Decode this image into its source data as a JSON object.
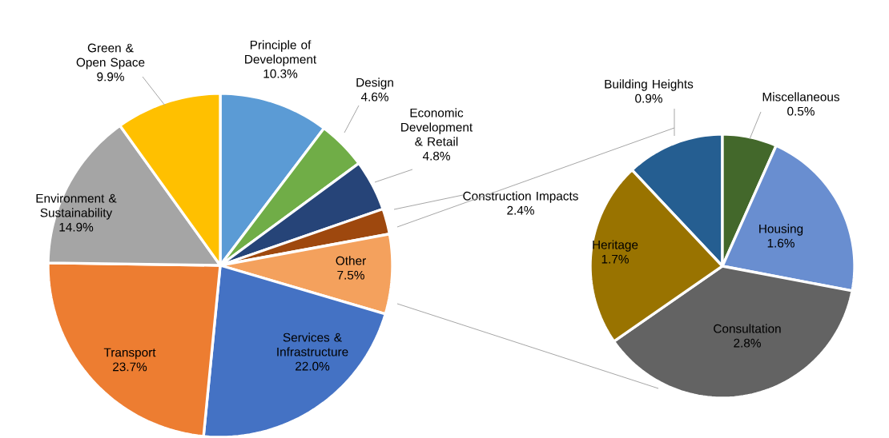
{
  "chart_data": [
    {
      "type": "pie",
      "categories": [
        "Principle of Development",
        "Design",
        "Economic Development & Retail",
        "Construction Impacts",
        "Other",
        "Services & Infrastructure",
        "Transport",
        "Environment & Sustainability",
        "Green & Open Space"
      ],
      "values": [
        10.3,
        4.6,
        4.8,
        2.4,
        7.5,
        22.0,
        23.7,
        14.9,
        9.9
      ],
      "value_labels": [
        "10.3%",
        "4.6%",
        "4.8%",
        "2.4%",
        "7.5%",
        "22.0%",
        "23.7%",
        "14.9%",
        "9.9%"
      ],
      "colors": [
        "#5b9bd5",
        "#70ad47",
        "#264478",
        "#9e480e",
        "#f4a15d",
        "#4472c4",
        "#ed7d31",
        "#a5a5a5",
        "#ffc000"
      ]
    },
    {
      "type": "pie",
      "categories": [
        "Building Heights",
        "Miscellaneous",
        "Housing",
        "Consultation",
        "Heritage"
      ],
      "values": [
        0.9,
        0.5,
        1.6,
        2.8,
        1.7
      ],
      "value_labels": [
        "0.9%",
        "0.5%",
        "1.6%",
        "2.8%",
        "1.7%"
      ],
      "colors": [
        "#255e91",
        "#43682b",
        "#698ed0",
        "#636363",
        "#997300"
      ]
    }
  ]
}
